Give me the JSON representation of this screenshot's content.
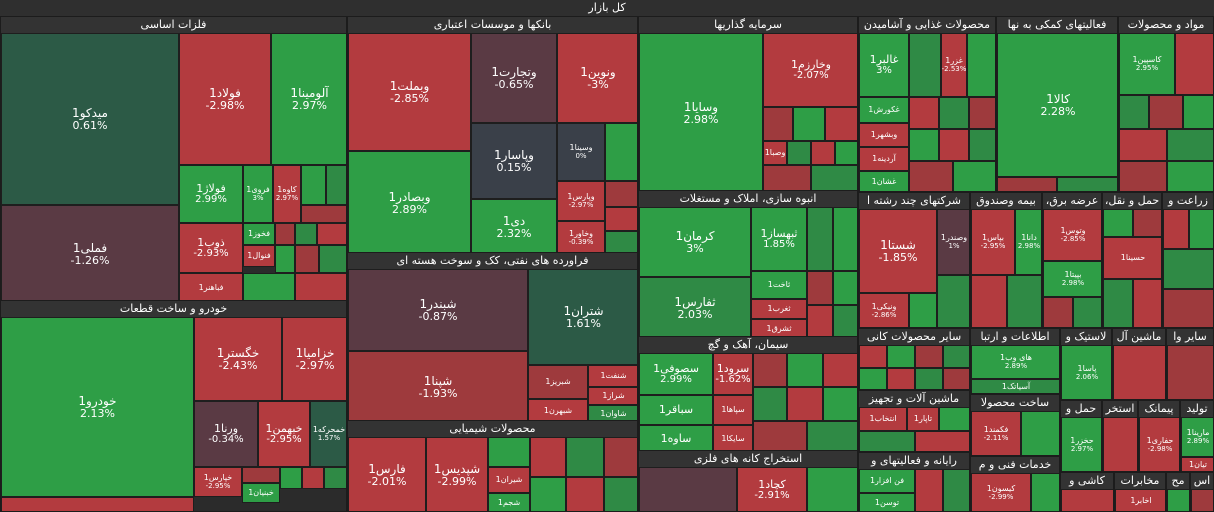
{
  "header": {
    "title": "کل بازار"
  },
  "sectors": [
    {
      "key": "metals",
      "title": "فلزات اساسی",
      "tiles": [
        {
          "name": "میدکو1",
          "pct": "0.61%"
        },
        {
          "name": "فولاد1",
          "pct": "-2.98%"
        },
        {
          "name": "آلومینا1",
          "pct": "2.97%"
        },
        {
          "name": "فملی1",
          "pct": "-1.26%"
        },
        {
          "name": "فولاژ1",
          "pct": "2.99%"
        },
        {
          "name": "فروی1",
          "pct": "3%"
        },
        {
          "name": "کاوه1",
          "pct": "2.97%"
        },
        {
          "name": "ذوب1",
          "pct": "-2.93%"
        },
        {
          "name": "فخوز1",
          "pct": ""
        },
        {
          "name": "فنوال1",
          "pct": ""
        },
        {
          "name": "فباهنر1",
          "pct": ""
        }
      ]
    },
    {
      "key": "banks",
      "title": "بانکها و موسسات اعتباری",
      "tiles": [
        {
          "name": "وبملت1",
          "pct": "-2.85%"
        },
        {
          "name": "وتجارت1",
          "pct": "-0.65%"
        },
        {
          "name": "ونوین1",
          "pct": "-3%"
        },
        {
          "name": "وپاسار1",
          "pct": "0.15%"
        },
        {
          "name": "وسینا1",
          "pct": "0%"
        },
        {
          "name": "وبصادر1",
          "pct": "2.89%"
        },
        {
          "name": "دی1",
          "pct": "2.32%"
        },
        {
          "name": "وپارس1",
          "pct": "-2.97%"
        },
        {
          "name": "وخاور1",
          "pct": "-0.39%"
        }
      ]
    },
    {
      "key": "invest",
      "title": "سرمایه گذاریها",
      "tiles": [
        {
          "name": "وسایا1",
          "pct": "2.98%"
        },
        {
          "name": "وخارزم1",
          "pct": "-2.07%"
        },
        {
          "name": "وصبا1",
          "pct": ""
        }
      ]
    },
    {
      "key": "food",
      "title": "محصولات غذایی و آشامیدن",
      "tiles": [
        {
          "name": "غالبر1",
          "pct": "3%"
        },
        {
          "name": "غزر1",
          "pct": "-2.53%"
        },
        {
          "name": "غکورش1",
          "pct": ""
        },
        {
          "name": "وبشهر1",
          "pct": ""
        },
        {
          "name": "آردینه1",
          "pct": ""
        },
        {
          "name": "غشان1",
          "pct": ""
        }
      ]
    },
    {
      "key": "support",
      "title": "فعالیتهای کمکی به نها",
      "tiles": [
        {
          "name": "کالا1",
          "pct": "2.28%"
        }
      ]
    },
    {
      "key": "materials",
      "title": "مواد و محصولات",
      "tiles": [
        {
          "name": "کاسپین1",
          "pct": "2.95%"
        }
      ]
    },
    {
      "key": "auto",
      "title": "خودرو و ساخت قطعات",
      "tiles": [
        {
          "name": "خودرو1",
          "pct": "2.13%"
        },
        {
          "name": "خگستر1",
          "pct": "-2.43%"
        },
        {
          "name": "خزامیا1",
          "pct": "-2.97%"
        },
        {
          "name": "ورنا1",
          "pct": "-0.34%"
        },
        {
          "name": "خبهمن1",
          "pct": "-2.95%"
        },
        {
          "name": "خمحرکه1",
          "pct": "1.57%"
        },
        {
          "name": "خپارس1",
          "pct": "-2.95%"
        },
        {
          "name": "خبنیان1",
          "pct": ""
        }
      ]
    },
    {
      "key": "oil",
      "title": "فراورده های نفتی، کک و سوخت هسته ای",
      "tiles": [
        {
          "name": "شبندر1",
          "pct": "-0.87%"
        },
        {
          "name": "شتران1",
          "pct": "1.61%"
        },
        {
          "name": "شپنا1",
          "pct": "-1.93%"
        },
        {
          "name": "شبریز1",
          "pct": ""
        },
        {
          "name": "شنفت1",
          "pct": ""
        },
        {
          "name": "شراز1",
          "pct": ""
        },
        {
          "name": "شبهرن1",
          "pct": ""
        },
        {
          "name": "شاوان1",
          "pct": ""
        }
      ]
    },
    {
      "key": "chem",
      "title": "محصولات شیمیایی",
      "tiles": [
        {
          "name": "فارس1",
          "pct": "-2.01%"
        },
        {
          "name": "شپدیس1",
          "pct": "-2.99%"
        },
        {
          "name": "شیران1",
          "pct": ""
        },
        {
          "name": "شجم1",
          "pct": ""
        }
      ]
    },
    {
      "key": "build",
      "title": "انبوه سازی، املاک و مستغلات",
      "tiles": [
        {
          "name": "کرمان1",
          "pct": "3%"
        },
        {
          "name": "ثبهساز1",
          "pct": "1.85%"
        },
        {
          "name": "ثفارس1",
          "pct": "2.03%"
        },
        {
          "name": "ثاخت1",
          "pct": ""
        },
        {
          "name": "ثغرب1",
          "pct": ""
        },
        {
          "name": "ثشرق1",
          "pct": ""
        }
      ]
    },
    {
      "key": "cement",
      "title": "سیمان، آهک و گچ",
      "tiles": [
        {
          "name": "سصوفی1",
          "pct": "2.99%"
        },
        {
          "name": "سرود1",
          "pct": "-1.62%"
        },
        {
          "name": "سباقر1",
          "pct": ""
        },
        {
          "name": "سپاها1",
          "pct": ""
        },
        {
          "name": "ساوه1",
          "pct": ""
        },
        {
          "name": "سایکا1",
          "pct": ""
        }
      ]
    },
    {
      "key": "mining",
      "title": "استخراج کانه های فلزی",
      "tiles": [
        {
          "name": "کچاد1",
          "pct": "-2.91%"
        }
      ]
    },
    {
      "key": "multi",
      "title": "شرکتهای چند رشته ا",
      "tiles": [
        {
          "name": "شستا1",
          "pct": "-1.85%"
        },
        {
          "name": "وصندر1",
          "pct": "1%"
        },
        {
          "name": "ونیکی1",
          "pct": "-2.86%"
        }
      ]
    },
    {
      "key": "insurance",
      "title": "بیمه وصندوق",
      "tiles": [
        {
          "name": "بپاس1",
          "pct": "-2.95%"
        },
        {
          "name": "دانا1",
          "pct": "2.98%"
        }
      ]
    },
    {
      "key": "utility",
      "title": "عرضه برق،",
      "tiles": [
        {
          "name": "وتوس1",
          "pct": "-2.85%"
        },
        {
          "name": "بپیتا1",
          "pct": "2.98%"
        }
      ]
    },
    {
      "key": "transport",
      "title": "حمل و نقل،",
      "tiles": [
        {
          "name": "حسینا1",
          "pct": ""
        }
      ]
    },
    {
      "key": "agri",
      "title": "زراعت و",
      "tiles": []
    },
    {
      "key": "othermin",
      "title": "سایر محصولات کانی",
      "tiles": []
    },
    {
      "key": "ict",
      "title": "اطلاعات و ارتبا",
      "tiles": [
        {
          "name": "های وب1",
          "pct": "2.89%"
        },
        {
          "name": "آسیاتک1",
          "pct": ""
        }
      ]
    },
    {
      "key": "plastic",
      "title": "لاستیک و",
      "tiles": [
        {
          "name": "پاسا1",
          "pct": "2.06%"
        }
      ]
    },
    {
      "key": "machinery2",
      "title": "ماشین آل",
      "tiles": []
    },
    {
      "key": "otherx",
      "title": "سایر وا",
      "tiles": []
    },
    {
      "key": "machinery",
      "title": "ماشین آلات و تجهیز",
      "tiles": [
        {
          "name": "انتخاب1",
          "pct": ""
        },
        {
          "name": "تاپار1",
          "pct": ""
        }
      ]
    },
    {
      "key": "other",
      "title": "ساخت محصولا",
      "tiles": [
        {
          "name": "فکمند1",
          "pct": "-2.11%"
        }
      ]
    },
    {
      "key": "computer",
      "title": "رایانه و فعالیتهای و",
      "tiles": [
        {
          "name": "فن افزار1",
          "pct": ""
        },
        {
          "name": "توسن1",
          "pct": ""
        }
      ]
    },
    {
      "key": "tech",
      "title": "خدمات فنی و م",
      "tiles": [
        {
          "name": "کیسون1",
          "pct": "-2.99%"
        }
      ]
    },
    {
      "key": "transport2",
      "title": "حمل و",
      "tiles": [
        {
          "name": "حخزر1",
          "pct": "2.97%"
        }
      ]
    },
    {
      "key": "quarry",
      "title": "استخر",
      "tiles": []
    },
    {
      "key": "contract",
      "title": "پیمانک",
      "tiles": [
        {
          "name": "حفاری1",
          "pct": "-2.98%"
        }
      ]
    },
    {
      "key": "prod",
      "title": "تولید",
      "tiles": [
        {
          "name": "مارینا1",
          "pct": "2.89%"
        },
        {
          "name": "تیان1",
          "pct": ""
        }
      ]
    },
    {
      "key": "telecom",
      "title": "مخابرات",
      "tiles": [
        {
          "name": "اخابر1",
          "pct": ""
        }
      ]
    },
    {
      "key": "mach3",
      "title": "کاشی و",
      "tiles": []
    },
    {
      "key": "pharma",
      "title": "مح",
      "tiles": []
    },
    {
      "key": "misc",
      "title": "اس",
      "tiles": []
    }
  ]
}
